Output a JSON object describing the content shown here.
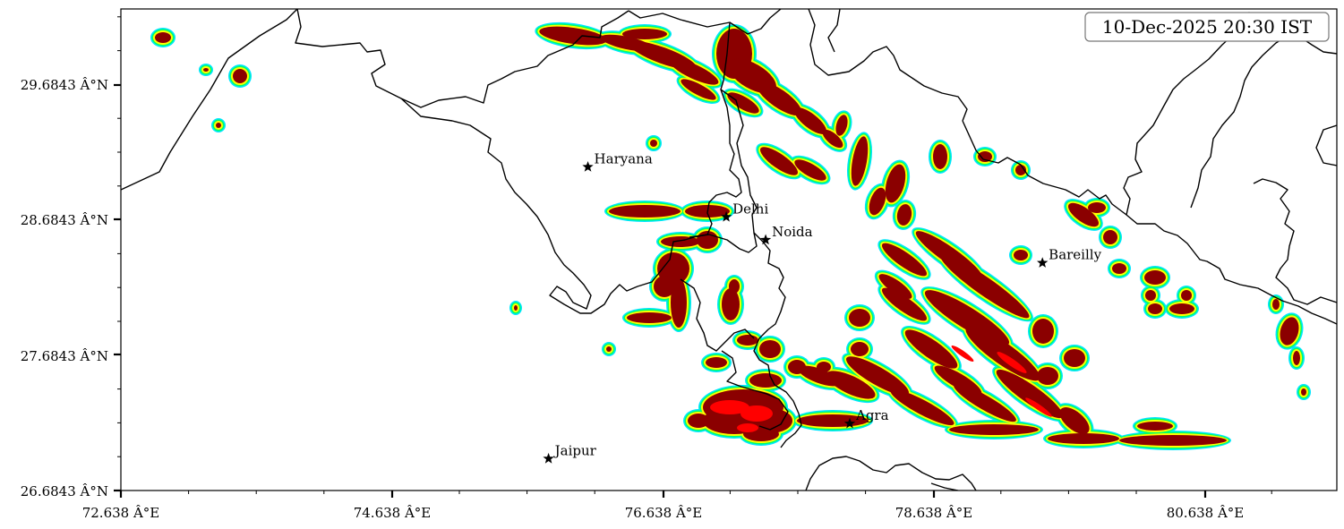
{
  "map": {
    "timestamp": "10-Dec-2025 20:30 IST",
    "x_ticks": [
      "72.638 Â°E",
      "74.638 Â°E",
      "76.638 Â°E",
      "78.638 Â°E",
      "80.638 Â°E"
    ],
    "y_ticks": [
      "29.6843 Â°N",
      "28.6843 Â°N",
      "27.6843 Â°N",
      "26.6843 Â°N"
    ],
    "lon_range": [
      72.638,
      81.6
    ],
    "lat_range": [
      26.6843,
      30.25
    ],
    "cities": [
      {
        "name": "Haryana",
        "lon": 76.08,
        "lat": 29.08
      },
      {
        "name": "Delhi",
        "lon": 77.1,
        "lat": 28.71
      },
      {
        "name": "Noida",
        "lon": 77.39,
        "lat": 28.54
      },
      {
        "name": "Bareilly",
        "lon": 79.43,
        "lat": 28.37
      },
      {
        "name": "Agra",
        "lon": 78.01,
        "lat": 27.18
      },
      {
        "name": "Jaipur",
        "lon": 75.79,
        "lat": 26.92
      }
    ],
    "colors": {
      "level_1": "#00e5ff",
      "level_2": "#00ff66",
      "level_3": "#ffff00",
      "level_4": "#8b0000",
      "level_5": "#ff0000",
      "boundary": "#000000"
    }
  }
}
